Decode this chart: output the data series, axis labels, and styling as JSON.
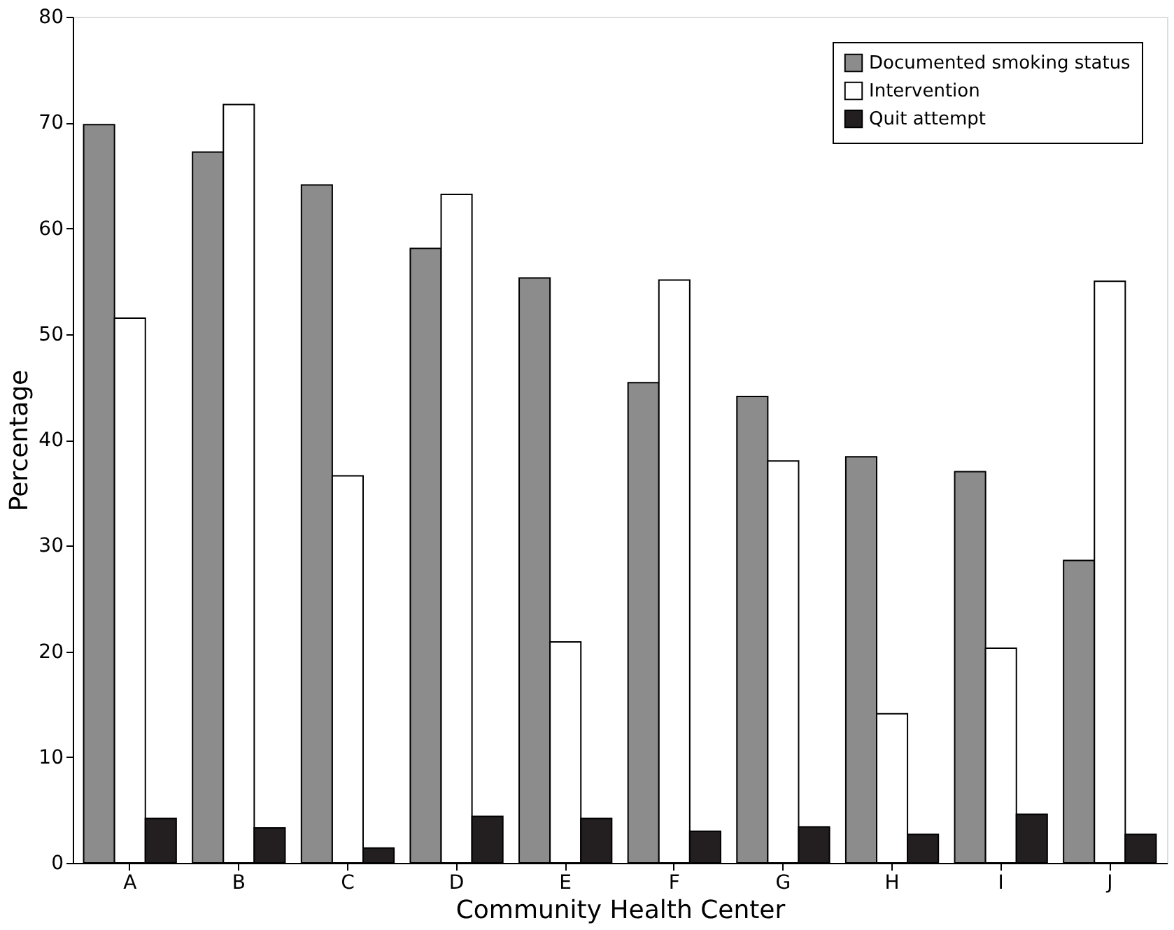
{
  "chart_data": {
    "type": "bar",
    "xlabel": "Community Health Center",
    "ylabel": "Percentage",
    "categories": [
      "A",
      "B",
      "C",
      "D",
      "E",
      "F",
      "G",
      "H",
      "I",
      "J"
    ],
    "series": [
      {
        "name": "Documented smoking status",
        "color": "#8c8c8c",
        "values": [
          69.8,
          67.2,
          64.1,
          58.1,
          55.3,
          45.4,
          44.1,
          38.4,
          37.0,
          28.6
        ]
      },
      {
        "name": "Intervention",
        "color": "#ffffff",
        "values": [
          51.5,
          71.7,
          36.6,
          63.2,
          20.9,
          55.1,
          38.0,
          14.1,
          20.3,
          55.0
        ]
      },
      {
        "name": "Quit attempt",
        "color": "#231f20",
        "values": [
          4.2,
          3.3,
          1.4,
          4.4,
          4.2,
          3.0,
          3.4,
          2.7,
          4.6,
          2.7
        ]
      }
    ],
    "ylim": [
      0,
      80
    ],
    "yticks": [
      0,
      10,
      20,
      30,
      40,
      50,
      60,
      70,
      80
    ],
    "grid": false,
    "legend": "top right"
  }
}
